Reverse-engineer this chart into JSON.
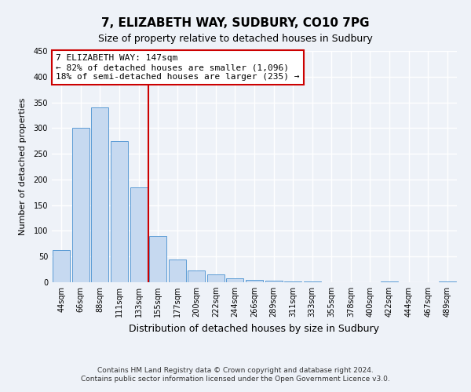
{
  "title": "7, ELIZABETH WAY, SUDBURY, CO10 7PG",
  "subtitle": "Size of property relative to detached houses in Sudbury",
  "xlabel": "Distribution of detached houses by size in Sudbury",
  "ylabel": "Number of detached properties",
  "bar_labels": [
    "44sqm",
    "66sqm",
    "88sqm",
    "111sqm",
    "133sqm",
    "155sqm",
    "177sqm",
    "200sqm",
    "222sqm",
    "244sqm",
    "266sqm",
    "289sqm",
    "311sqm",
    "333sqm",
    "355sqm",
    "378sqm",
    "400sqm",
    "422sqm",
    "444sqm",
    "467sqm",
    "489sqm"
  ],
  "bar_values": [
    62,
    300,
    340,
    275,
    185,
    90,
    45,
    23,
    15,
    8,
    5,
    3,
    2,
    1,
    0,
    0,
    0,
    1,
    0,
    0,
    1
  ],
  "bar_color": "#c6d9f0",
  "bar_edge_color": "#5b9bd5",
  "vline_x": 4.5,
  "vline_color": "#cc0000",
  "annotation_title": "7 ELIZABETH WAY: 147sqm",
  "annotation_line1": "← 82% of detached houses are smaller (1,096)",
  "annotation_line2": "18% of semi-detached houses are larger (235) →",
  "annotation_box_color": "#cc0000",
  "ylim": [
    0,
    450
  ],
  "yticks": [
    0,
    50,
    100,
    150,
    200,
    250,
    300,
    350,
    400,
    450
  ],
  "footnote1": "Contains HM Land Registry data © Crown copyright and database right 2024.",
  "footnote2": "Contains public sector information licensed under the Open Government Licence v3.0.",
  "bg_color": "#eef2f8",
  "grid_color": "#ffffff",
  "title_fontsize": 11,
  "subtitle_fontsize": 9,
  "xlabel_fontsize": 9,
  "ylabel_fontsize": 8,
  "tick_fontsize": 7,
  "annotation_fontsize": 8,
  "footnote_fontsize": 6.5
}
